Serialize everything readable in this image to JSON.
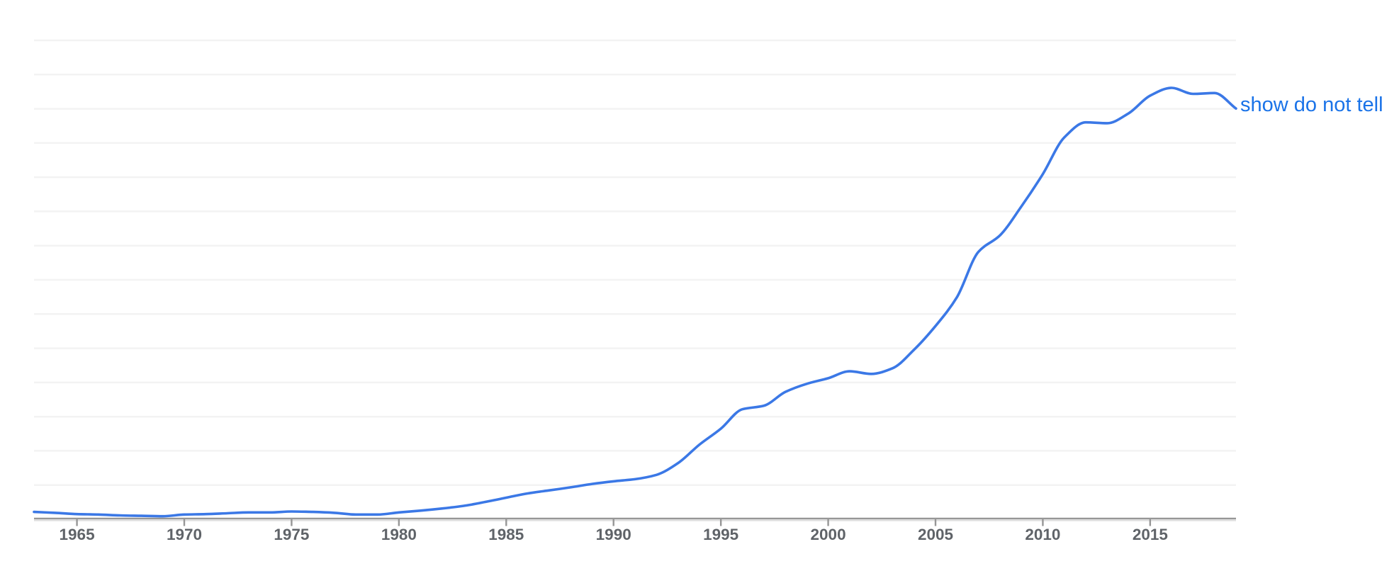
{
  "page": {
    "background": "#ffffff"
  },
  "chart_data": {
    "type": "line",
    "title": "",
    "xlabel": "",
    "ylabel": "",
    "x": [
      1963,
      1964,
      1965,
      1966,
      1967,
      1968,
      1969,
      1970,
      1971,
      1972,
      1973,
      1974,
      1975,
      1976,
      1977,
      1978,
      1979,
      1980,
      1981,
      1982,
      1983,
      1984,
      1985,
      1986,
      1987,
      1988,
      1989,
      1990,
      1991,
      1992,
      1993,
      1994,
      1995,
      1996,
      1997,
      1998,
      1999,
      2000,
      2001,
      2002,
      2003,
      2004,
      2005,
      2006,
      2007,
      2008,
      2009,
      2010,
      2011,
      2012,
      2013,
      2014,
      2015,
      2016,
      2017,
      2018,
      2019
    ],
    "series": [
      {
        "name": "show do not tell",
        "color": "#3b78e6",
        "values": [
          1.7,
          1.5,
          1.2,
          1.1,
          0.9,
          0.8,
          0.7,
          1.1,
          1.2,
          1.4,
          1.6,
          1.6,
          1.8,
          1.7,
          1.5,
          1.1,
          1.1,
          1.6,
          2.0,
          2.5,
          3.1,
          4.0,
          5.0,
          6.0,
          6.7,
          7.4,
          8.2,
          8.8,
          9.3,
          10.3,
          13.0,
          17.3,
          21.0,
          25.5,
          26.3,
          29.5,
          31.4,
          32.7,
          34.3,
          33.7,
          35.0,
          39.3,
          44.8,
          51.5,
          62.0,
          65.8,
          72.5,
          80.0,
          88.5,
          92.0,
          91.8,
          94.1,
          98.2,
          100.0,
          98.6,
          98.8,
          95.2
        ]
      }
    ],
    "xlim": [
      1963,
      2019
    ],
    "ylim": [
      0,
      111
    ],
    "y_unit": "relative frequency (normalized, peak = 100)",
    "x_ticks": [
      1965,
      1970,
      1975,
      1980,
      1985,
      1990,
      1995,
      2000,
      2005,
      2010,
      2015
    ],
    "y_tick_labels_shown": false,
    "grid": "horizontal",
    "gridline_count": 14,
    "legend_position": "line-end-label"
  },
  "labels": {
    "series_end_label": "show do not tell"
  },
  "colors": {
    "line": "#3b78e6",
    "end_label": "#1a73e8",
    "axis": "#969696",
    "axis_shadow": "#dcdcdc",
    "tick": "#969696",
    "tick_label": "#5f6368",
    "gridline": "#f3f3f3"
  }
}
